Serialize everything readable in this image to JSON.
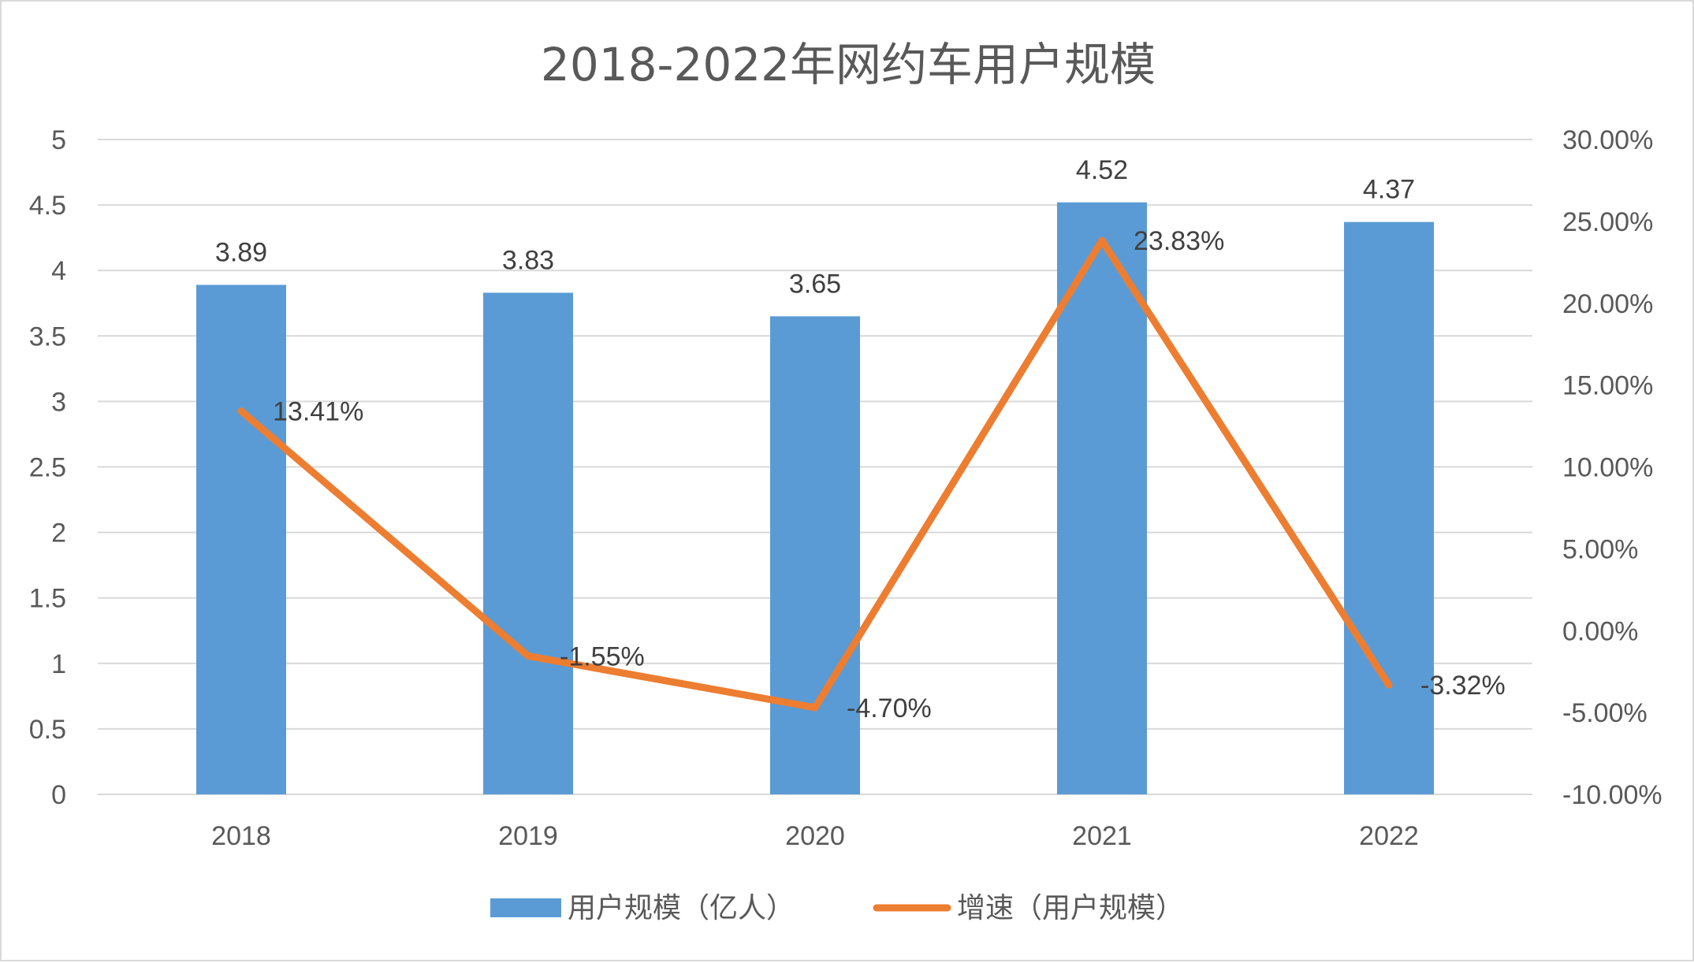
{
  "chart_data": {
    "type": "bar",
    "title": "2018-2022年网约车用户规模",
    "categories": [
      "2018",
      "2019",
      "2020",
      "2021",
      "2022"
    ],
    "series": [
      {
        "name": "用户规模（亿人）",
        "type": "bar",
        "axis": "left",
        "color": "#5B9BD5",
        "values": [
          3.89,
          3.83,
          3.65,
          4.52,
          4.37
        ],
        "labels": [
          "3.89",
          "3.83",
          "3.65",
          "4.52",
          "4.37"
        ]
      },
      {
        "name": "增速（用户规模）",
        "type": "line",
        "axis": "right",
        "color": "#ED7D31",
        "values": [
          13.41,
          -1.55,
          -4.7,
          23.83,
          -3.32
        ],
        "labels": [
          "13.41%",
          "-1.55%",
          "-4.70%",
          "23.83%",
          "-3.32%"
        ]
      }
    ],
    "y_left": {
      "min": 0,
      "max": 5,
      "step": 0.5,
      "tick_labels": [
        "0",
        "0.5",
        "1",
        "1.5",
        "2",
        "2.5",
        "3",
        "3.5",
        "4",
        "4.5",
        "5"
      ]
    },
    "y_right": {
      "min": -10,
      "max": 30,
      "step": 5,
      "tick_labels": [
        "-10.00%",
        "-5.00%",
        "0.00%",
        "5.00%",
        "10.00%",
        "15.00%",
        "20.00%",
        "25.00%",
        "30.00%"
      ]
    },
    "grid": true,
    "legend_position": "bottom"
  }
}
